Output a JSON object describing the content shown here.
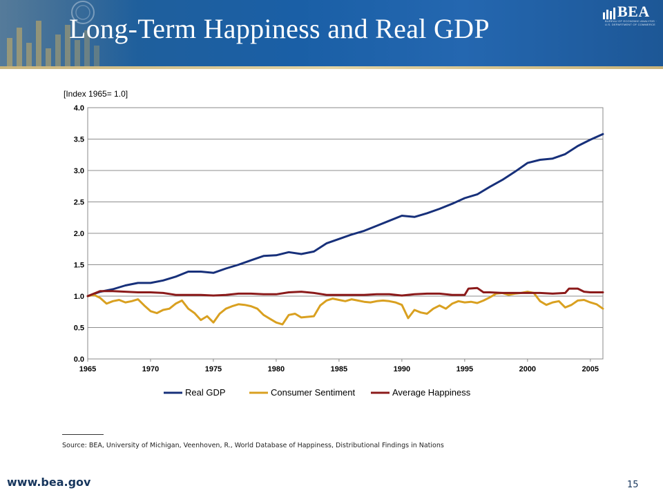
{
  "slide": {
    "title": "Long-Term Happiness and Real GDP",
    "logo_text": "BEA",
    "logo_subtext": "BUREAU OF ECONOMIC ANALYSIS · U.S. DEPARTMENT OF COMMERCE",
    "source": "Source: BEA, University of Michigan, Veenhoven, R., World Database of Happiness, Distributional Findings in Nations",
    "website": "www.bea.gov",
    "page_number": "15",
    "colors": {
      "banner": "#1f5f9c",
      "footer_text": "#17365d"
    }
  },
  "chart_data": {
    "type": "line",
    "title": "",
    "ylabel": "[Index 1965= 1.0]",
    "xlabel": "",
    "xlim": [
      1965,
      2006
    ],
    "ylim": [
      0.0,
      4.0
    ],
    "x_ticks": [
      1965,
      1970,
      1975,
      1980,
      1985,
      1990,
      1995,
      2000,
      2005
    ],
    "y_ticks": [
      "0.0",
      "0.5",
      "1.0",
      "1.5",
      "2.0",
      "2.5",
      "3.0",
      "3.5",
      "4.0"
    ],
    "grid": true,
    "legend_position": "bottom",
    "series": [
      {
        "name": "Real GDP",
        "color": "#17307a",
        "points": [
          [
            1965,
            1.0
          ],
          [
            1966,
            1.07
          ],
          [
            1967,
            1.11
          ],
          [
            1968,
            1.17
          ],
          [
            1969,
            1.21
          ],
          [
            1970,
            1.21
          ],
          [
            1971,
            1.25
          ],
          [
            1972,
            1.31
          ],
          [
            1973,
            1.39
          ],
          [
            1974,
            1.39
          ],
          [
            1975,
            1.37
          ],
          [
            1976,
            1.44
          ],
          [
            1977,
            1.5
          ],
          [
            1978,
            1.57
          ],
          [
            1979,
            1.64
          ],
          [
            1980,
            1.65
          ],
          [
            1981,
            1.7
          ],
          [
            1982,
            1.67
          ],
          [
            1983,
            1.71
          ],
          [
            1984,
            1.84
          ],
          [
            1985,
            1.91
          ],
          [
            1986,
            1.98
          ],
          [
            1987,
            2.04
          ],
          [
            1988,
            2.12
          ],
          [
            1989,
            2.2
          ],
          [
            1990,
            2.28
          ],
          [
            1991,
            2.26
          ],
          [
            1992,
            2.32
          ],
          [
            1993,
            2.39
          ],
          [
            1994,
            2.47
          ],
          [
            1995,
            2.56
          ],
          [
            1996,
            2.62
          ],
          [
            1997,
            2.74
          ],
          [
            1998,
            2.85
          ],
          [
            1999,
            2.98
          ],
          [
            2000,
            3.12
          ],
          [
            2001,
            3.17
          ],
          [
            2002,
            3.19
          ],
          [
            2003,
            3.26
          ],
          [
            2004,
            3.39
          ],
          [
            2005,
            3.49
          ],
          [
            2006,
            3.58
          ]
        ]
      },
      {
        "name": "Consumer Sentiment",
        "color": "#d9a020",
        "points": [
          [
            1965,
            1.0
          ],
          [
            1965.5,
            1.02
          ],
          [
            1966,
            0.97
          ],
          [
            1966.5,
            0.88
          ],
          [
            1967,
            0.92
          ],
          [
            1967.5,
            0.94
          ],
          [
            1968,
            0.9
          ],
          [
            1968.5,
            0.92
          ],
          [
            1969,
            0.95
          ],
          [
            1969.5,
            0.85
          ],
          [
            1970,
            0.76
          ],
          [
            1970.5,
            0.73
          ],
          [
            1971,
            0.78
          ],
          [
            1971.5,
            0.8
          ],
          [
            1972,
            0.88
          ],
          [
            1972.5,
            0.93
          ],
          [
            1973,
            0.8
          ],
          [
            1973.5,
            0.73
          ],
          [
            1974,
            0.62
          ],
          [
            1974.5,
            0.68
          ],
          [
            1975,
            0.58
          ],
          [
            1975.5,
            0.72
          ],
          [
            1976,
            0.8
          ],
          [
            1976.5,
            0.84
          ],
          [
            1977,
            0.87
          ],
          [
            1977.5,
            0.86
          ],
          [
            1978,
            0.84
          ],
          [
            1978.5,
            0.8
          ],
          [
            1979,
            0.7
          ],
          [
            1979.5,
            0.64
          ],
          [
            1980,
            0.58
          ],
          [
            1980.5,
            0.55
          ],
          [
            1981,
            0.7
          ],
          [
            1981.5,
            0.72
          ],
          [
            1982,
            0.66
          ],
          [
            1982.5,
            0.67
          ],
          [
            1983,
            0.68
          ],
          [
            1983.5,
            0.85
          ],
          [
            1984,
            0.93
          ],
          [
            1984.5,
            0.96
          ],
          [
            1985,
            0.94
          ],
          [
            1985.5,
            0.92
          ],
          [
            1986,
            0.95
          ],
          [
            1986.5,
            0.93
          ],
          [
            1987,
            0.91
          ],
          [
            1987.5,
            0.9
          ],
          [
            1988,
            0.92
          ],
          [
            1988.5,
            0.93
          ],
          [
            1989,
            0.92
          ],
          [
            1989.5,
            0.9
          ],
          [
            1990,
            0.86
          ],
          [
            1990.5,
            0.65
          ],
          [
            1991,
            0.78
          ],
          [
            1991.5,
            0.74
          ],
          [
            1992,
            0.72
          ],
          [
            1992.5,
            0.8
          ],
          [
            1993,
            0.85
          ],
          [
            1993.5,
            0.8
          ],
          [
            1994,
            0.88
          ],
          [
            1994.5,
            0.92
          ],
          [
            1995,
            0.9
          ],
          [
            1995.5,
            0.91
          ],
          [
            1996,
            0.89
          ],
          [
            1996.5,
            0.93
          ],
          [
            1997,
            0.98
          ],
          [
            1997.5,
            1.04
          ],
          [
            1998,
            1.05
          ],
          [
            1998.5,
            1.02
          ],
          [
            1999,
            1.04
          ],
          [
            1999.5,
            1.05
          ],
          [
            2000,
            1.07
          ],
          [
            2000.5,
            1.05
          ],
          [
            2001,
            0.92
          ],
          [
            2001.5,
            0.86
          ],
          [
            2002,
            0.9
          ],
          [
            2002.5,
            0.92
          ],
          [
            2003,
            0.82
          ],
          [
            2003.5,
            0.86
          ],
          [
            2004,
            0.93
          ],
          [
            2004.5,
            0.94
          ],
          [
            2005,
            0.9
          ],
          [
            2005.5,
            0.87
          ],
          [
            2006,
            0.8
          ]
        ]
      },
      {
        "name": "Average Happiness",
        "color": "#8b1a1a",
        "points": [
          [
            1965,
            1.0
          ],
          [
            1966,
            1.08
          ],
          [
            1967,
            1.08
          ],
          [
            1968,
            1.07
          ],
          [
            1969,
            1.06
          ],
          [
            1970,
            1.06
          ],
          [
            1971,
            1.05
          ],
          [
            1972,
            1.02
          ],
          [
            1973,
            1.02
          ],
          [
            1974,
            1.02
          ],
          [
            1975,
            1.01
          ],
          [
            1976,
            1.02
          ],
          [
            1977,
            1.04
          ],
          [
            1978,
            1.04
          ],
          [
            1979,
            1.03
          ],
          [
            1980,
            1.03
          ],
          [
            1981,
            1.06
          ],
          [
            1982,
            1.07
          ],
          [
            1983,
            1.05
          ],
          [
            1984,
            1.02
          ],
          [
            1985,
            1.02
          ],
          [
            1986,
            1.02
          ],
          [
            1987,
            1.02
          ],
          [
            1988,
            1.03
          ],
          [
            1989,
            1.03
          ],
          [
            1990,
            1.01
          ],
          [
            1991,
            1.03
          ],
          [
            1992,
            1.04
          ],
          [
            1993,
            1.04
          ],
          [
            1994,
            1.02
          ],
          [
            1995,
            1.02
          ],
          [
            1995.3,
            1.12
          ],
          [
            1996,
            1.13
          ],
          [
            1996.5,
            1.06
          ],
          [
            1997,
            1.06
          ],
          [
            1998,
            1.05
          ],
          [
            1999,
            1.05
          ],
          [
            2000,
            1.05
          ],
          [
            2001,
            1.05
          ],
          [
            2002,
            1.04
          ],
          [
            2003,
            1.05
          ],
          [
            2003.3,
            1.12
          ],
          [
            2004,
            1.12
          ],
          [
            2004.5,
            1.07
          ],
          [
            2005,
            1.06
          ],
          [
            2006,
            1.06
          ]
        ]
      }
    ]
  }
}
